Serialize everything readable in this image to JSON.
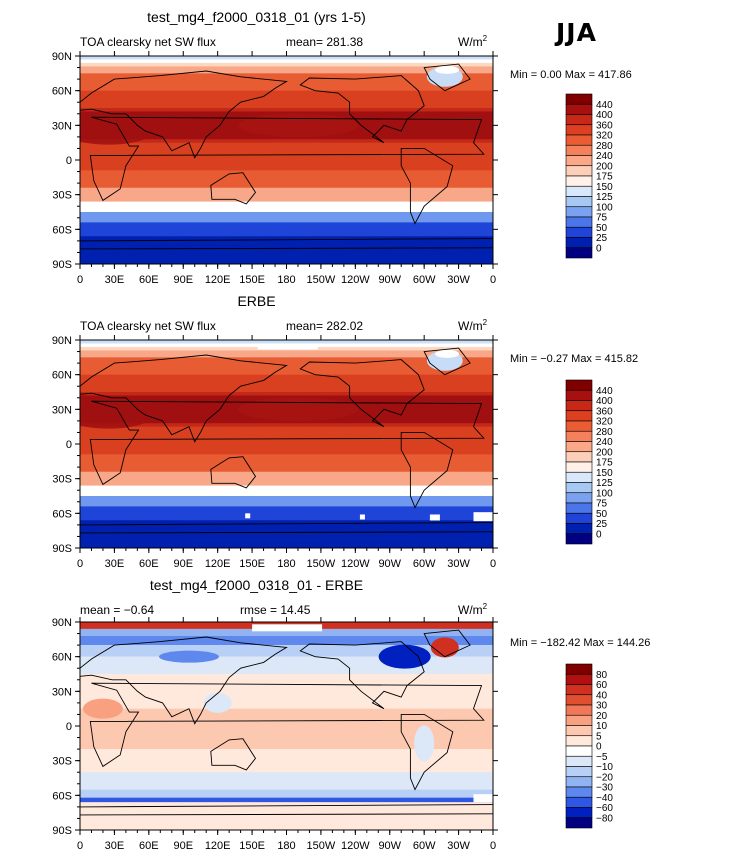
{
  "season_label": "JJA",
  "panel_colors": {
    "lower": [
      "#000080",
      "#0000B0",
      "#0000D8",
      "#1040F0",
      "#3060F0",
      "#5088F0",
      "#70A8F0",
      "#98C4F4",
      "#C0DCF8",
      "#E8F2FC"
    ],
    "upper": [
      "#FFF0E0",
      "#FDD0B0",
      "#FBB088",
      "#F89068",
      "#F07050",
      "#E05030",
      "#D04020",
      "#B82818",
      "#A01010",
      "#800000"
    ],
    "zero": "#FFFFFF"
  },
  "chart_data": [
    {
      "type": "heatmap",
      "title": "test_mg4_f2000_0318_01 (yrs 1-5)",
      "subtitle_left": "TOA clearsky net SW flux",
      "stat_left": "mean= 281.38",
      "stat_middle": "",
      "units": "W/m",
      "units_sup": "2",
      "min_label": "Min =     0.00 Max = 417.86",
      "min": 0.0,
      "max": 417.86,
      "mean": 281.38,
      "xticks": [
        "0",
        "30E",
        "60E",
        "90E",
        "120E",
        "150E",
        "180",
        "150W",
        "120W",
        "90W",
        "60W",
        "30W",
        "0"
      ],
      "yticks": [
        "90N",
        "60N",
        "30N",
        "0",
        "30S",
        "60S",
        "90S"
      ],
      "colorbar_levels": [
        "440",
        "400",
        "360",
        "320",
        "280",
        "240",
        "200",
        "175",
        "150",
        "125",
        "100",
        "75",
        "50",
        "25",
        "0"
      ],
      "field": "absolute"
    },
    {
      "type": "heatmap",
      "title": "ERBE",
      "subtitle_left": "TOA clearsky net SW flux",
      "stat_left": "mean= 282.02",
      "stat_middle": "",
      "units": "W/m",
      "units_sup": "2",
      "min_label": "Min =   −0.27 Max = 415.82",
      "min": -0.27,
      "max": 415.82,
      "mean": 282.02,
      "xticks": [
        "0",
        "30E",
        "60E",
        "90E",
        "120E",
        "150E",
        "180",
        "150W",
        "120W",
        "90W",
        "60W",
        "30W",
        "0"
      ],
      "yticks": [
        "90N",
        "60N",
        "30N",
        "0",
        "30S",
        "60S",
        "90S"
      ],
      "colorbar_levels": [
        "440",
        "400",
        "360",
        "320",
        "280",
        "240",
        "200",
        "175",
        "150",
        "125",
        "100",
        "75",
        "50",
        "25",
        "0"
      ],
      "field": "absolute"
    },
    {
      "type": "heatmap",
      "title": "test_mg4_f2000_0318_01 - ERBE",
      "subtitle_left": "mean =   −0.64",
      "stat_left": "",
      "stat_middle": "rmse =  14.45",
      "units": "W/m",
      "units_sup": "2",
      "min_label": "Min = −182.42 Max = 144.26",
      "min": -182.42,
      "max": 144.26,
      "mean": -0.64,
      "rmse": 14.45,
      "xticks": [
        "0",
        "30E",
        "60E",
        "90E",
        "120E",
        "150E",
        "180",
        "150W",
        "120W",
        "90W",
        "60W",
        "30W",
        "0"
      ],
      "yticks": [
        "90N",
        "60N",
        "30N",
        "0",
        "30S",
        "60S",
        "90S"
      ],
      "colorbar_levels": [
        "80",
        "60",
        "40",
        "30",
        "20",
        "10",
        "5",
        "0",
        "−5",
        "−10",
        "−20",
        "−30",
        "−40",
        "−60",
        "−80"
      ],
      "field": "difference"
    }
  ]
}
